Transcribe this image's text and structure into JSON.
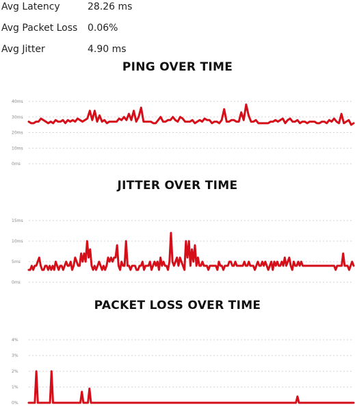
{
  "stats": [
    {
      "label": "Avg Latency",
      "value": "28.26 ms"
    },
    {
      "label": "Avg Packet Loss",
      "value": "0.06%"
    },
    {
      "label": "Avg Jitter",
      "value": "4.90 ms"
    }
  ],
  "colors": {
    "series": "#d40f1a",
    "grid": "#d2d2d2",
    "tick_text": "#888888"
  },
  "chart_data": [
    {
      "type": "line",
      "title": "PING OVER TIME",
      "xlabel": "",
      "ylabel": "",
      "ylim": [
        0,
        40
      ],
      "yticks": [
        0,
        10,
        20,
        30,
        40
      ],
      "tick_labels": [
        "0ms",
        "10ms",
        "20ms",
        "30ms",
        "40ms"
      ],
      "grid": true,
      "series": [
        {
          "values": [
            27,
            26,
            26,
            27,
            27,
            29,
            28,
            27,
            26,
            27,
            26,
            28,
            27,
            27,
            28,
            26,
            28,
            27,
            28,
            27,
            29,
            28,
            27,
            28,
            29,
            34,
            28,
            34,
            27,
            31,
            27,
            28,
            26,
            27,
            27,
            27,
            27,
            29,
            28,
            30,
            28,
            32,
            28,
            34,
            27,
            30,
            36,
            27,
            27,
            27,
            27,
            26,
            26,
            28,
            30,
            27,
            27,
            28,
            28,
            30,
            28,
            27,
            30,
            29,
            27,
            27,
            27,
            28,
            26,
            27,
            28,
            27,
            29,
            28,
            28,
            26,
            27,
            27,
            26,
            28,
            35,
            27,
            27,
            28,
            28,
            27,
            27,
            33,
            28,
            38,
            31,
            27,
            27,
            28,
            26,
            26,
            26,
            26,
            26,
            27,
            27,
            28,
            27,
            28,
            29,
            26,
            28,
            29,
            27,
            27,
            28,
            26,
            27,
            27,
            26,
            27,
            27,
            27,
            26,
            26,
            27,
            27,
            26,
            28,
            27,
            29,
            27,
            26,
            32,
            26,
            27,
            28,
            25,
            26
          ]
        }
      ]
    },
    {
      "type": "line",
      "title": "JITTER OVER TIME",
      "xlabel": "",
      "ylabel": "",
      "ylim": [
        0,
        15
      ],
      "yticks": [
        0,
        5,
        10,
        15
      ],
      "tick_labels": [
        "0ms",
        "5ms",
        "10ms",
        "15ms"
      ],
      "grid": true,
      "series": [
        {
          "values": [
            3,
            3,
            4,
            3,
            4,
            4,
            5,
            6,
            4,
            3,
            3,
            4,
            4,
            3,
            4,
            3,
            4,
            3,
            5,
            4,
            3,
            4,
            4,
            3,
            4,
            5,
            4,
            4,
            5,
            3,
            4,
            6,
            5,
            4,
            4,
            7,
            5,
            7,
            5,
            10,
            6,
            8,
            4,
            3,
            4,
            3,
            4,
            5,
            4,
            3,
            4,
            3,
            4,
            6,
            5,
            6,
            5,
            6,
            6,
            9,
            4,
            3,
            5,
            4,
            4,
            10,
            4,
            4,
            3,
            4,
            4,
            4,
            3,
            3,
            4,
            4,
            5,
            3,
            4,
            4,
            4,
            5,
            3,
            4,
            5,
            4,
            5,
            3,
            6,
            4,
            5,
            4,
            4,
            3,
            5,
            12,
            5,
            4,
            5,
            6,
            4,
            6,
            5,
            4,
            3,
            10,
            6,
            10,
            4,
            8,
            5,
            9,
            4,
            6,
            4,
            4,
            5,
            4,
            4,
            4,
            3,
            4,
            4,
            4,
            4,
            4,
            3,
            5,
            4,
            4,
            3,
            4,
            4,
            4,
            5,
            5,
            4,
            4,
            5,
            4,
            4,
            4,
            4,
            4,
            5,
            4,
            4,
            5,
            4,
            4,
            4,
            3,
            4,
            5,
            4,
            4,
            5,
            4,
            5,
            4,
            3,
            4,
            5,
            3,
            5,
            4,
            5,
            4,
            4,
            5,
            4,
            6,
            4,
            5,
            6,
            4,
            3,
            5,
            4,
            4,
            5,
            4,
            5,
            4,
            4,
            4,
            4,
            4,
            4,
            4,
            4,
            4,
            4,
            4,
            4,
            4,
            4,
            4,
            4,
            4,
            4,
            4,
            4,
            4,
            4,
            3,
            4,
            4,
            4,
            4,
            7,
            4,
            4,
            4,
            3,
            4,
            5,
            4
          ]
        }
      ]
    },
    {
      "type": "line",
      "title": "PACKET LOSS OVER TIME",
      "xlabel": "",
      "ylabel": "",
      "ylim": [
        0,
        4
      ],
      "yticks": [
        0,
        1,
        2,
        3,
        4
      ],
      "tick_labels": [
        "0%",
        "1%",
        "2%",
        "3%",
        "4%"
      ],
      "grid": true,
      "series": [
        {
          "values": [
            0,
            0,
            0,
            0,
            0,
            2,
            0,
            0,
            0,
            0,
            0,
            0,
            0,
            0,
            0,
            2,
            0,
            0,
            0,
            0,
            0,
            0,
            0,
            0,
            0,
            0,
            0,
            0,
            0,
            0,
            0,
            0,
            0,
            0,
            0,
            0.7,
            0,
            0,
            0,
            0,
            0.9,
            0,
            0,
            0,
            0,
            0,
            0,
            0,
            0,
            0,
            0,
            0,
            0,
            0,
            0,
            0,
            0,
            0,
            0,
            0,
            0,
            0,
            0,
            0,
            0,
            0,
            0,
            0,
            0,
            0,
            0,
            0,
            0,
            0,
            0,
            0,
            0,
            0,
            0,
            0,
            0,
            0,
            0,
            0,
            0,
            0,
            0,
            0,
            0,
            0,
            0,
            0,
            0,
            0,
            0,
            0,
            0,
            0,
            0,
            0,
            0,
            0,
            0,
            0,
            0,
            0,
            0,
            0,
            0,
            0,
            0,
            0,
            0,
            0,
            0,
            0,
            0,
            0,
            0,
            0,
            0,
            0,
            0,
            0,
            0,
            0,
            0,
            0,
            0,
            0,
            0,
            0,
            0,
            0,
            0,
            0,
            0,
            0,
            0,
            0,
            0,
            0,
            0,
            0,
            0,
            0,
            0,
            0,
            0,
            0,
            0,
            0,
            0,
            0,
            0,
            0,
            0,
            0,
            0,
            0,
            0,
            0,
            0,
            0,
            0,
            0,
            0,
            0,
            0,
            0,
            0,
            0,
            0,
            0,
            0,
            0,
            0,
            0.4,
            0,
            0,
            0,
            0,
            0,
            0,
            0,
            0,
            0,
            0,
            0,
            0,
            0,
            0,
            0,
            0,
            0,
            0,
            0,
            0,
            0,
            0,
            0,
            0,
            0,
            0,
            0,
            0,
            0,
            0,
            0,
            0,
            0,
            0,
            0,
            0,
            0
          ]
        }
      ]
    }
  ]
}
